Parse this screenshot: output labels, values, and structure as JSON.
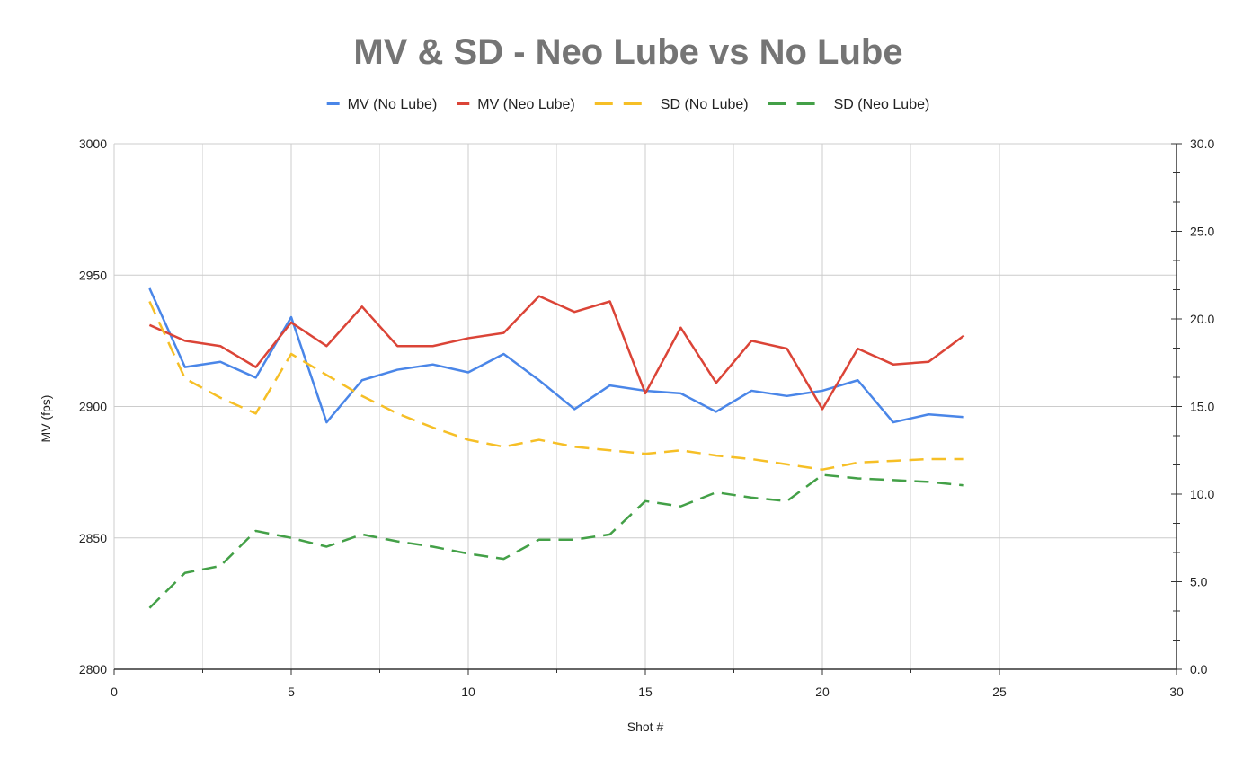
{
  "chart_data": {
    "type": "line",
    "title": "MV & SD - Neo Lube vs No Lube",
    "xlabel": "Shot #",
    "ylabel": "MV (fps)",
    "y2label": "",
    "xlim": [
      0,
      30
    ],
    "ylim": [
      2800,
      3000
    ],
    "y2lim": [
      0,
      30
    ],
    "x_ticks": [
      0,
      5,
      10,
      15,
      20,
      25,
      30
    ],
    "y_ticks": [
      2800,
      2850,
      2900,
      2950,
      3000
    ],
    "y2_ticks": [
      "0.0",
      "5.0",
      "10.0",
      "15.0",
      "20.0",
      "25.0",
      "30.0"
    ],
    "grid": true,
    "legend_position": "top-center",
    "x": [
      1,
      2,
      3,
      4,
      5,
      6,
      7,
      8,
      9,
      10,
      11,
      12,
      13,
      14,
      15,
      16,
      17,
      18,
      19,
      20,
      21,
      22,
      23,
      24
    ],
    "series": [
      {
        "name": "MV (No Lube)",
        "axis": "left",
        "color": "#4a86e8",
        "dash": "solid",
        "values": [
          2945,
          2915,
          2917,
          2911,
          2934,
          2894,
          2910,
          2914,
          2916,
          2913,
          2920,
          2910,
          2899,
          2908,
          2906,
          2905,
          2898,
          2906,
          2904,
          2906,
          2910,
          2894,
          2897,
          2896
        ]
      },
      {
        "name": "MV (Neo Lube)",
        "axis": "left",
        "color": "#db4437",
        "dash": "solid",
        "values": [
          2931,
          2925,
          2923,
          2915,
          2932,
          2923,
          2938,
          2923,
          2923,
          2926,
          2928,
          2942,
          2936,
          2940,
          2905,
          2930,
          2909,
          2925,
          2922,
          2899,
          2922,
          2916,
          2917,
          2927
        ]
      },
      {
        "name": "SD (No Lube)",
        "axis": "right",
        "color": "#f6bf26",
        "dash": "dashed",
        "values": [
          21.0,
          16.6,
          15.5,
          14.6,
          18.0,
          16.8,
          15.6,
          14.6,
          13.8,
          13.1,
          12.7,
          13.1,
          12.7,
          12.5,
          12.3,
          12.5,
          12.2,
          12.0,
          11.7,
          11.4,
          11.8,
          11.9,
          12.0,
          12.0
        ]
      },
      {
        "name": "SD (Neo Lube)",
        "axis": "right",
        "color": "#43a047",
        "dash": "dashed",
        "values": [
          3.5,
          5.5,
          5.9,
          7.9,
          7.5,
          7.0,
          7.7,
          7.3,
          7.0,
          6.6,
          6.3,
          7.4,
          7.4,
          7.7,
          9.6,
          9.3,
          10.1,
          9.8,
          9.6,
          11.1,
          10.9,
          10.8,
          10.7,
          10.5
        ]
      }
    ]
  }
}
